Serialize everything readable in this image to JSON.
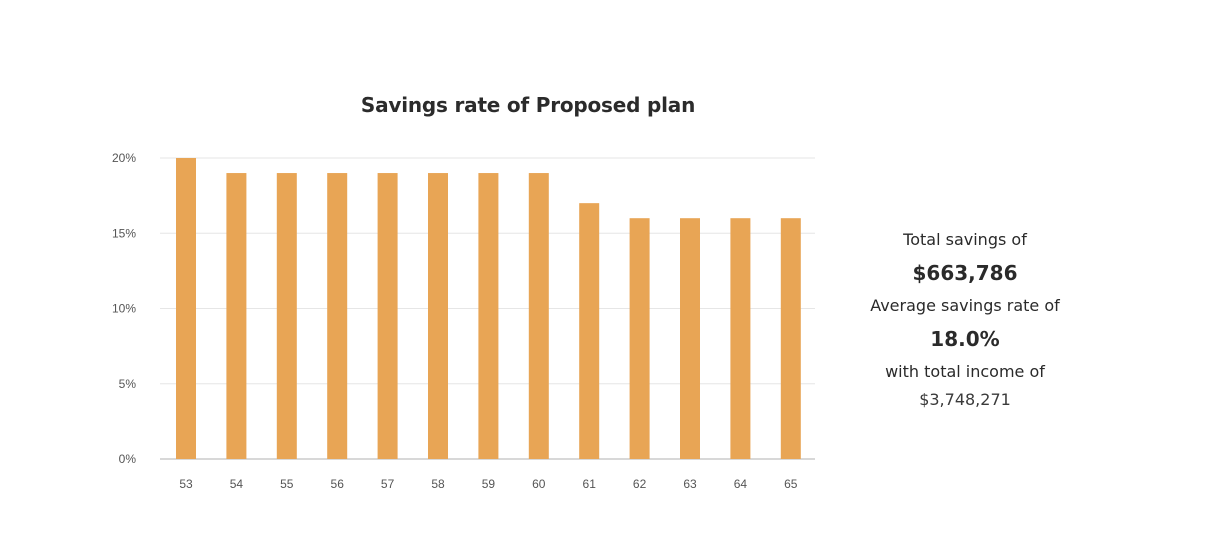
{
  "chart_data": {
    "type": "bar",
    "title": "Savings rate of Proposed plan",
    "categories": [
      "53",
      "54",
      "55",
      "56",
      "57",
      "58",
      "59",
      "60",
      "61",
      "62",
      "63",
      "64",
      "65"
    ],
    "values": [
      20,
      19,
      19,
      19,
      19,
      19,
      19,
      19,
      17,
      16,
      16,
      16,
      16
    ],
    "value_unit": "%",
    "ylim": [
      0,
      20
    ],
    "yticks": [
      0,
      5,
      10,
      15,
      20
    ],
    "ytick_labels": [
      "0%",
      "5%",
      "10%",
      "15%",
      "20%"
    ],
    "xlabel": "",
    "ylabel": "",
    "grid": true,
    "legend": "none",
    "bar_color": "#E8A555",
    "grid_color": "#E6E6E6"
  },
  "summary": {
    "total_savings_label": "Total savings of",
    "total_savings_value": "$663,786",
    "avg_rate_label": "Average savings rate of",
    "avg_rate_value": "18.0%",
    "income_label": "with total income of",
    "income_value": "$3,748,271"
  }
}
